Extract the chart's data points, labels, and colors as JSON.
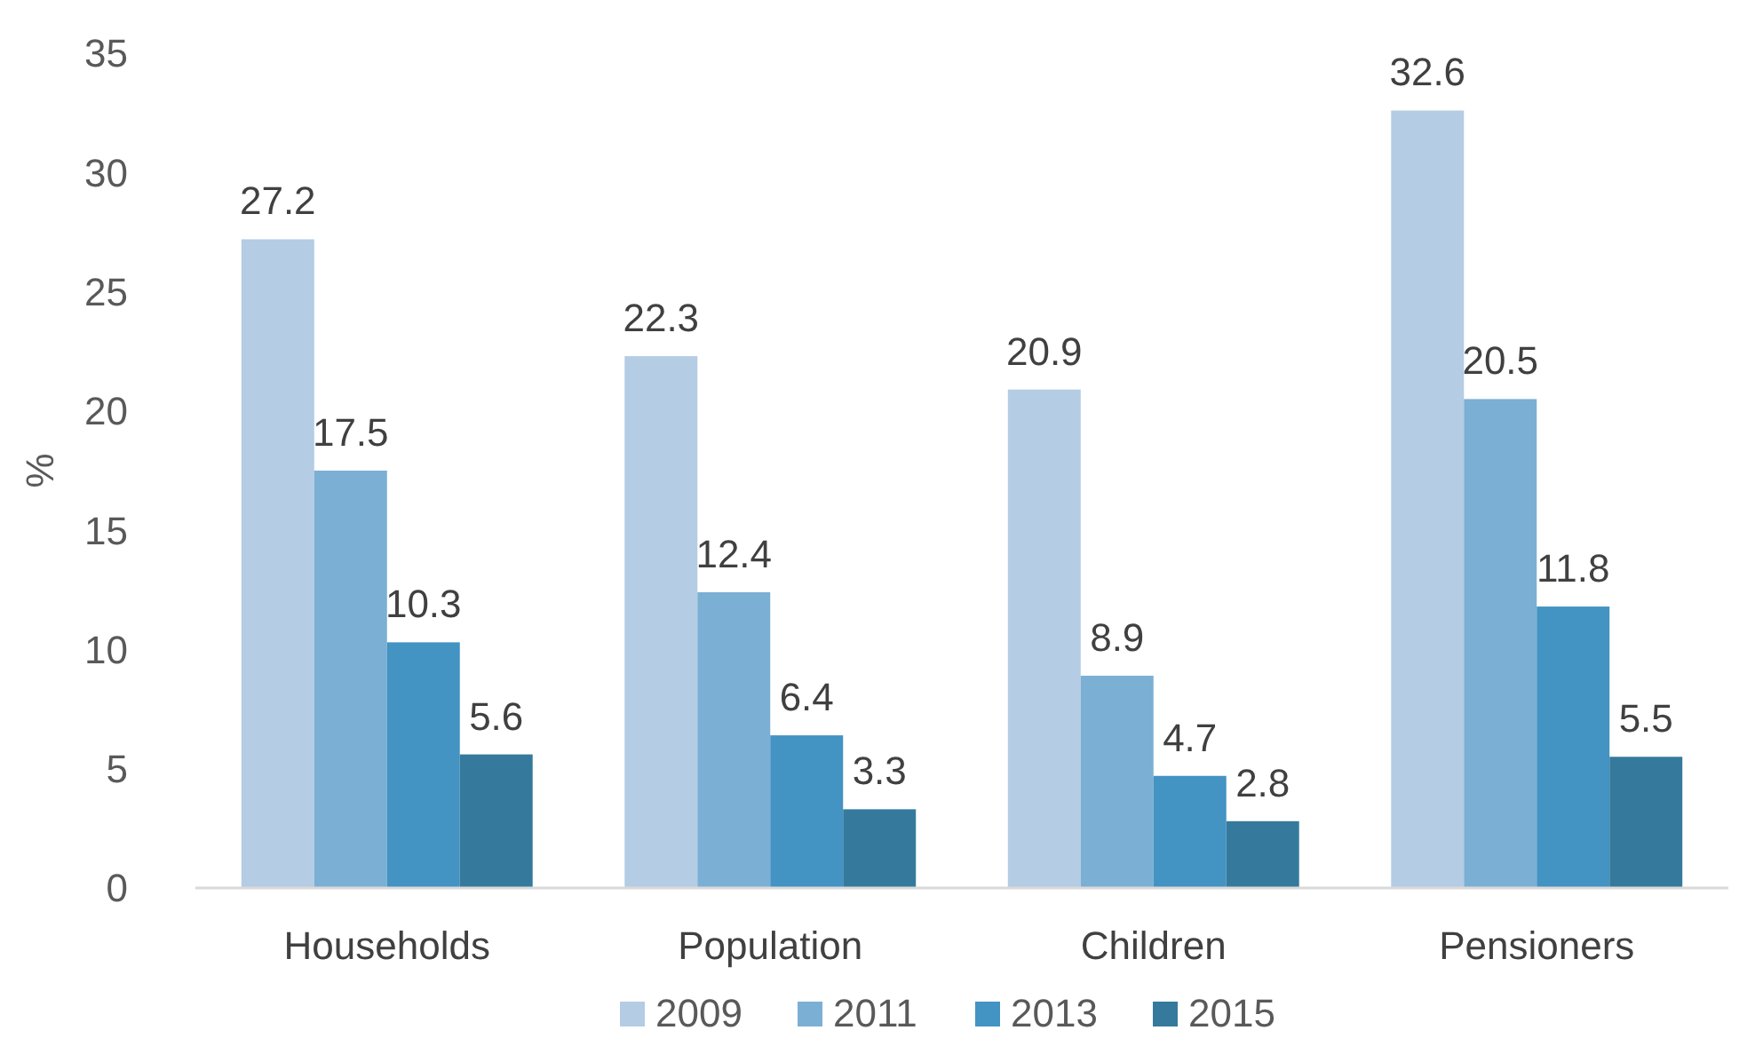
{
  "chart_data": {
    "type": "bar",
    "ylabel": "%",
    "categories": [
      "Households",
      "Population",
      "Children",
      "Pensioners"
    ],
    "series": [
      {
        "name": "2009",
        "color": "#b4cce4",
        "values": [
          27.2,
          22.3,
          20.9,
          32.6
        ]
      },
      {
        "name": "2011",
        "color": "#7bafd4",
        "values": [
          17.5,
          12.4,
          8.9,
          20.5
        ]
      },
      {
        "name": "2013",
        "color": "#4393c3",
        "values": [
          10.3,
          6.4,
          4.7,
          11.8
        ]
      },
      {
        "name": "2015",
        "color": "#357a9c",
        "values": [
          5.6,
          3.3,
          2.8,
          5.5
        ]
      }
    ],
    "ylim": [
      0,
      35
    ],
    "yticks": [
      0,
      5,
      10,
      15,
      20,
      25,
      30,
      35
    ],
    "grid": false,
    "legend": "bottom",
    "data_labels": true
  }
}
